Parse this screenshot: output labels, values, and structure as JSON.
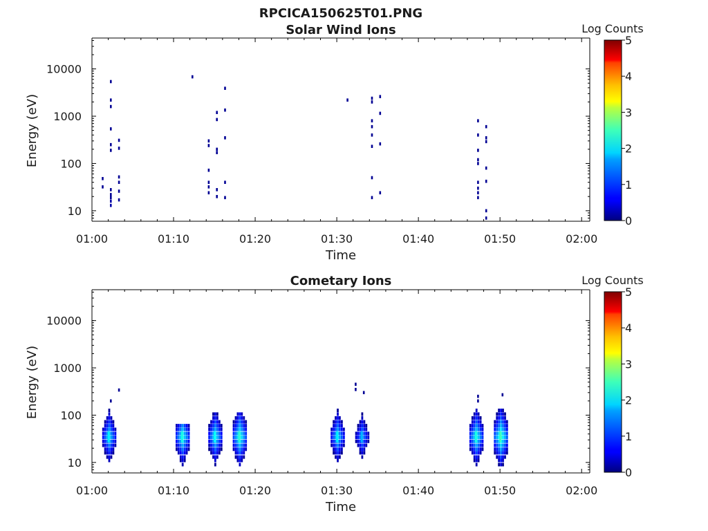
{
  "figure": {
    "filename": "RPCICA150625T01.PNG"
  },
  "colorbar": {
    "label": "Log Counts",
    "min": 0,
    "max": 5,
    "ticks": [
      "0",
      "1",
      "2",
      "3",
      "4",
      "5"
    ],
    "colormap": "jet"
  },
  "chart_data": [
    {
      "type": "heatmap",
      "title": "Solar Wind Ions",
      "xlabel": "Time",
      "ylabel": "Energy (eV)",
      "x_range_minutes_after_01_00": [
        0,
        61
      ],
      "x_ticks": [
        "01:00",
        "01:10",
        "01:20",
        "01:30",
        "01:40",
        "01:50",
        "02:00"
      ],
      "y_scale": "log",
      "ylim": [
        6,
        45000
      ],
      "y_ticks": [
        "10",
        "100",
        "1000",
        "10000"
      ],
      "cells_note": "each cell: [time, energy_eV, log_counts]",
      "cells": [
        [
          "01:01",
          48,
          0.1
        ],
        [
          "01:01",
          32,
          0.1
        ],
        [
          "01:02",
          28,
          0.1
        ],
        [
          "01:02",
          22,
          0.1
        ],
        [
          "01:02",
          16,
          0.2
        ],
        [
          "01:02",
          13,
          0.2
        ],
        [
          "01:02",
          19,
          0.1
        ],
        [
          "01:03",
          26,
          0.1
        ],
        [
          "01:03",
          40,
          0.1
        ],
        [
          "01:03",
          52,
          0.1
        ],
        [
          "01:03",
          17,
          0.1
        ],
        [
          "01:02",
          5400,
          0.1
        ],
        [
          "01:02",
          2200,
          0.1
        ],
        [
          "01:02",
          1600,
          0.1
        ],
        [
          "01:02",
          540,
          0.1
        ],
        [
          "01:02",
          190,
          0.1
        ],
        [
          "01:02",
          250,
          0.1
        ],
        [
          "01:03",
          310,
          0.1
        ],
        [
          "01:03",
          210,
          0.1
        ],
        [
          "01:12",
          6800,
          0.1
        ],
        [
          "01:14",
          72,
          0.1
        ],
        [
          "01:14",
          40,
          0.1
        ],
        [
          "01:14",
          32,
          0.1
        ],
        [
          "01:14",
          24,
          0.1
        ],
        [
          "01:15",
          20,
          0.1
        ],
        [
          "01:15",
          28,
          0.1
        ],
        [
          "01:16",
          40,
          0.1
        ],
        [
          "01:16",
          19,
          0.1
        ],
        [
          "01:14",
          300,
          0.1
        ],
        [
          "01:14",
          240,
          0.1
        ],
        [
          "01:15",
          200,
          0.1
        ],
        [
          "01:15",
          170,
          0.1
        ],
        [
          "01:15",
          1200,
          0.1
        ],
        [
          "01:15",
          850,
          0.1
        ],
        [
          "01:16",
          1350,
          0.1
        ],
        [
          "01:16",
          350,
          0.1
        ],
        [
          "01:16",
          3900,
          0.1
        ],
        [
          "01:31",
          2200,
          0.1
        ],
        [
          "01:34",
          2400,
          0.1
        ],
        [
          "01:34",
          2000,
          0.1
        ],
        [
          "01:35",
          2600,
          0.1
        ],
        [
          "01:35",
          1150,
          0.1
        ],
        [
          "01:34",
          800,
          0.1
        ],
        [
          "01:34",
          600,
          0.1
        ],
        [
          "01:34",
          400,
          0.1
        ],
        [
          "01:34",
          230,
          0.1
        ],
        [
          "01:35",
          260,
          0.1
        ],
        [
          "01:34",
          50,
          0.1
        ],
        [
          "01:34",
          19,
          0.1
        ],
        [
          "01:35",
          24,
          0.1
        ],
        [
          "01:47",
          800,
          0.1
        ],
        [
          "01:47",
          400,
          0.1
        ],
        [
          "01:48",
          600,
          0.1
        ],
        [
          "01:47",
          190,
          0.1
        ],
        [
          "01:48",
          350,
          0.1
        ],
        [
          "01:48",
          290,
          0.1
        ],
        [
          "01:47",
          120,
          0.1
        ],
        [
          "01:47",
          100,
          0.1
        ],
        [
          "01:48",
          80,
          0.1
        ],
        [
          "01:47",
          40,
          0.1
        ],
        [
          "01:48",
          42,
          0.1
        ],
        [
          "01:47",
          30,
          0.1
        ],
        [
          "01:47",
          24,
          0.1
        ],
        [
          "01:47",
          19,
          0.1
        ],
        [
          "01:48",
          10,
          0.1
        ],
        [
          "01:48",
          7,
          0.1
        ]
      ]
    },
    {
      "type": "heatmap",
      "title": "Cometary Ions",
      "xlabel": "Time",
      "ylabel": "Energy (eV)",
      "x_range_minutes_after_01_00": [
        0,
        61
      ],
      "x_ticks": [
        "01:00",
        "01:10",
        "01:20",
        "01:30",
        "01:40",
        "01:50",
        "02:00"
      ],
      "y_scale": "log",
      "ylim": [
        6,
        45000
      ],
      "y_ticks": [
        "10",
        "100",
        "1000",
        "10000"
      ],
      "cells_note": "each cell: [time, energy_eV, log_counts]",
      "bursts": [
        {
          "time": "01:02",
          "energy_eV": 35,
          "peak_log_counts": 1.8,
          "top_eV": 200
        },
        {
          "time": "01:11",
          "energy_eV": 35,
          "peak_log_counts": 2.0,
          "top_eV": 70
        },
        {
          "time": "01:15",
          "energy_eV": 35,
          "peak_log_counts": 1.9,
          "top_eV": 120
        },
        {
          "time": "01:18",
          "energy_eV": 35,
          "peak_log_counts": 2.1,
          "top_eV": 120
        },
        {
          "time": "01:30",
          "energy_eV": 35,
          "peak_log_counts": 1.8,
          "top_eV": 180
        },
        {
          "time": "01:33",
          "energy_eV": 35,
          "peak_log_counts": 1.5,
          "top_eV": 450
        },
        {
          "time": "01:47",
          "energy_eV": 35,
          "peak_log_counts": 2.0,
          "top_eV": 250
        },
        {
          "time": "01:50",
          "energy_eV": 35,
          "peak_log_counts": 2.2,
          "top_eV": 280
        }
      ],
      "cells": [
        [
          "01:03",
          340,
          0.1
        ],
        [
          "01:02",
          200,
          0.1
        ],
        [
          "01:32",
          450,
          0.1
        ],
        [
          "01:32",
          350,
          0.1
        ],
        [
          "01:33",
          300,
          0.1
        ],
        [
          "01:50",
          270,
          0.1
        ],
        [
          "01:47",
          250,
          0.1
        ],
        [
          "01:47",
          200,
          0.1
        ]
      ]
    }
  ]
}
